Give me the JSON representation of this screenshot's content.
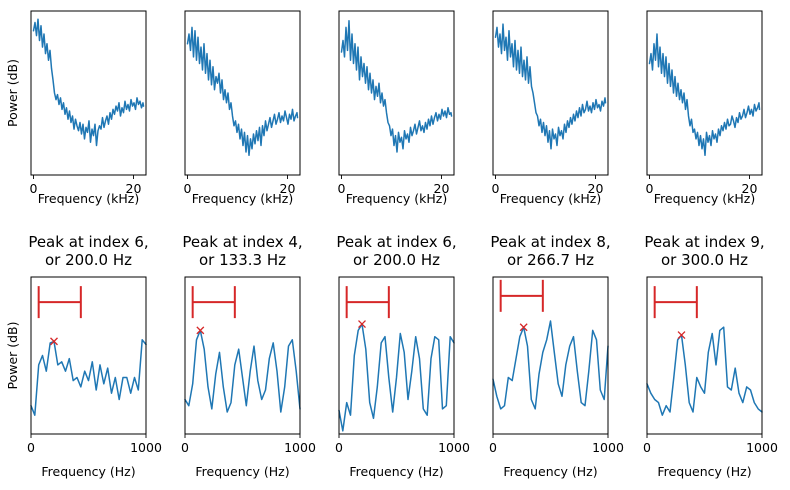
{
  "figure": {
    "top_row": {
      "ylabel": "Power (dB)",
      "xlabel": "Frequency (kHz)",
      "xticks": [
        0,
        20
      ]
    },
    "bottom_row": {
      "ylabel": "Power (dB)",
      "xlabel": "Frequency (Hz)",
      "xticks": [
        0,
        1000
      ]
    }
  },
  "chart_data": [
    {
      "type": "line",
      "row": "top",
      "panel": 1,
      "xlabel": "Frequency (kHz)",
      "ylabel": "Power (dB)",
      "xlim": [
        -0.5,
        22.5
      ],
      "ylim": [
        0,
        100
      ],
      "x": [
        0,
        0.3,
        0.6,
        0.9,
        1.2,
        1.5,
        1.8,
        2.1,
        2.4,
        2.7,
        3.0,
        3.3,
        3.6,
        3.9,
        4.2,
        4.5,
        4.8,
        5.1,
        5.4,
        5.7,
        6.0,
        6.3,
        6.6,
        6.9,
        7.2,
        7.5,
        7.8,
        8.1,
        8.4,
        8.7,
        9.0,
        9.3,
        9.6,
        9.9,
        10.2,
        10.5,
        10.8,
        11.1,
        11.4,
        11.7,
        12.0,
        12.3,
        12.6,
        12.9,
        13.2,
        13.5,
        13.8,
        14.1,
        14.4,
        14.7,
        15.0,
        15.3,
        15.6,
        15.9,
        16.2,
        16.5,
        16.8,
        17.1,
        17.4,
        17.7,
        18.0,
        18.3,
        18.6,
        18.9,
        19.2,
        19.5,
        19.8,
        20.1,
        20.4,
        20.7,
        21.0,
        21.3,
        21.6,
        21.9,
        22.0
      ],
      "y": [
        88,
        93,
        85,
        95,
        82,
        91,
        78,
        86,
        74,
        80,
        70,
        76,
        65,
        58,
        50,
        46,
        49,
        43,
        47,
        40,
        44,
        37,
        41,
        34,
        39,
        32,
        36,
        28,
        34,
        30,
        27,
        32,
        25,
        31,
        22,
        29,
        26,
        33,
        20,
        28,
        24,
        31,
        18,
        27,
        30,
        28,
        35,
        29,
        33,
        36,
        31,
        38,
        34,
        40,
        37,
        42,
        39,
        44,
        36,
        41,
        38,
        45,
        40,
        43,
        39,
        46,
        42,
        44,
        40,
        47,
        43,
        45,
        41,
        44,
        42
      ]
    },
    {
      "type": "line",
      "row": "top",
      "panel": 2,
      "xlabel": "Frequency (kHz)",
      "xlim": [
        -0.5,
        22.5
      ],
      "ylim": [
        0,
        100
      ],
      "x": [
        0,
        0.3,
        0.6,
        0.9,
        1.2,
        1.5,
        1.8,
        2.1,
        2.4,
        2.7,
        3.0,
        3.3,
        3.6,
        3.9,
        4.2,
        4.5,
        4.8,
        5.1,
        5.4,
        5.7,
        6.0,
        6.3,
        6.6,
        6.9,
        7.2,
        7.5,
        7.8,
        8.1,
        8.4,
        8.7,
        9.0,
        9.3,
        9.6,
        9.9,
        10.2,
        10.5,
        10.8,
        11.1,
        11.4,
        11.7,
        12.0,
        12.3,
        12.6,
        12.9,
        13.2,
        13.5,
        13.8,
        14.1,
        14.4,
        14.7,
        15.0,
        15.3,
        15.6,
        15.9,
        16.2,
        16.5,
        16.8,
        17.1,
        17.4,
        17.7,
        18.0,
        18.3,
        18.6,
        18.9,
        19.2,
        19.5,
        19.8,
        20.1,
        20.4,
        20.7,
        21.0,
        21.3,
        21.6,
        21.9,
        22.0
      ],
      "y": [
        80,
        86,
        76,
        90,
        72,
        88,
        70,
        84,
        68,
        78,
        64,
        80,
        62,
        74,
        58,
        70,
        55,
        66,
        52,
        60,
        56,
        62,
        50,
        58,
        46,
        52,
        44,
        50,
        40,
        44,
        36,
        30,
        33,
        26,
        31,
        22,
        28,
        18,
        26,
        14,
        24,
        12,
        22,
        16,
        25,
        19,
        27,
        21,
        29,
        18,
        30,
        24,
        33,
        27,
        31,
        35,
        29,
        33,
        37,
        31,
        34,
        38,
        32,
        36,
        33,
        39,
        35,
        31,
        37,
        34,
        40,
        33,
        36,
        38,
        35
      ]
    },
    {
      "type": "line",
      "row": "top",
      "panel": 3,
      "xlabel": "Frequency (kHz)",
      "xlim": [
        -0.5,
        22.5
      ],
      "ylim": [
        0,
        100
      ],
      "x": [
        0,
        0.3,
        0.6,
        0.9,
        1.2,
        1.5,
        1.8,
        2.1,
        2.4,
        2.7,
        3.0,
        3.3,
        3.6,
        3.9,
        4.2,
        4.5,
        4.8,
        5.1,
        5.4,
        5.7,
        6.0,
        6.3,
        6.6,
        6.9,
        7.2,
        7.5,
        7.8,
        8.1,
        8.4,
        8.7,
        9.0,
        9.3,
        9.6,
        9.9,
        10.2,
        10.5,
        10.8,
        11.1,
        11.4,
        11.7,
        12.0,
        12.3,
        12.6,
        12.9,
        13.2,
        13.5,
        13.8,
        14.1,
        14.4,
        14.7,
        15.0,
        15.3,
        15.6,
        15.9,
        16.2,
        16.5,
        16.8,
        17.1,
        17.4,
        17.7,
        18.0,
        18.3,
        18.6,
        18.9,
        19.2,
        19.5,
        19.8,
        20.1,
        20.4,
        20.7,
        21.0,
        21.3,
        21.6,
        21.9,
        22.0
      ],
      "y": [
        75,
        82,
        72,
        90,
        76,
        94,
        70,
        86,
        68,
        80,
        64,
        78,
        58,
        72,
        60,
        68,
        56,
        66,
        52,
        62,
        50,
        58,
        46,
        54,
        48,
        56,
        44,
        50,
        42,
        46,
        38,
        32,
        30,
        24,
        28,
        18,
        24,
        14,
        26,
        20,
        23,
        16,
        27,
        22,
        25,
        20,
        29,
        24,
        27,
        31,
        25,
        29,
        33,
        27,
        30,
        26,
        32,
        28,
        34,
        30,
        36,
        31,
        35,
        38,
        33,
        37,
        34,
        40,
        36,
        39,
        35,
        41,
        37,
        38,
        36
      ]
    },
    {
      "type": "line",
      "row": "top",
      "panel": 4,
      "xlabel": "Frequency (kHz)",
      "xlim": [
        -0.5,
        22.5
      ],
      "ylim": [
        0,
        100
      ],
      "x": [
        0,
        0.3,
        0.6,
        0.9,
        1.2,
        1.5,
        1.8,
        2.1,
        2.4,
        2.7,
        3.0,
        3.3,
        3.6,
        3.9,
        4.2,
        4.5,
        4.8,
        5.1,
        5.4,
        5.7,
        6.0,
        6.3,
        6.6,
        6.9,
        7.2,
        7.5,
        7.8,
        8.1,
        8.4,
        8.7,
        9.0,
        9.3,
        9.6,
        9.9,
        10.2,
        10.5,
        10.8,
        11.1,
        11.4,
        11.7,
        12.0,
        12.3,
        12.6,
        12.9,
        13.2,
        13.5,
        13.8,
        14.1,
        14.4,
        14.7,
        15.0,
        15.3,
        15.6,
        15.9,
        16.2,
        16.5,
        16.8,
        17.1,
        17.4,
        17.7,
        18.0,
        18.3,
        18.6,
        18.9,
        19.2,
        19.5,
        19.8,
        20.1,
        20.4,
        20.7,
        21.0,
        21.3,
        21.6,
        21.9,
        22.0
      ],
      "y": [
        84,
        90,
        78,
        86,
        74,
        92,
        76,
        84,
        70,
        88,
        72,
        80,
        66,
        82,
        64,
        76,
        62,
        78,
        60,
        70,
        58,
        72,
        56,
        66,
        54,
        50,
        44,
        38,
        36,
        30,
        34,
        26,
        32,
        24,
        30,
        20,
        27,
        16,
        28,
        22,
        25,
        18,
        29,
        24,
        27,
        22,
        31,
        26,
        33,
        29,
        35,
        31,
        37,
        33,
        39,
        35,
        41,
        36,
        43,
        38,
        40,
        45,
        39,
        42,
        38,
        44,
        40,
        46,
        41,
        43,
        39,
        45,
        42,
        47,
        44
      ]
    },
    {
      "type": "line",
      "row": "top",
      "panel": 5,
      "xlabel": "Frequency (kHz)",
      "xlim": [
        -0.5,
        22.5
      ],
      "ylim": [
        0,
        100
      ],
      "x": [
        0,
        0.3,
        0.6,
        0.9,
        1.2,
        1.5,
        1.8,
        2.1,
        2.4,
        2.7,
        3.0,
        3.3,
        3.6,
        3.9,
        4.2,
        4.5,
        4.8,
        5.1,
        5.4,
        5.7,
        6.0,
        6.3,
        6.6,
        6.9,
        7.2,
        7.5,
        7.8,
        8.1,
        8.4,
        8.7,
        9.0,
        9.3,
        9.6,
        9.9,
        10.2,
        10.5,
        10.8,
        11.1,
        11.4,
        11.7,
        12.0,
        12.3,
        12.6,
        12.9,
        13.2,
        13.5,
        13.8,
        14.1,
        14.4,
        14.7,
        15.0,
        15.3,
        15.6,
        15.9,
        16.2,
        16.5,
        16.8,
        17.1,
        17.4,
        17.7,
        18.0,
        18.3,
        18.6,
        18.9,
        19.2,
        19.5,
        19.8,
        20.1,
        20.4,
        20.7,
        21.0,
        21.3,
        21.6,
        21.9,
        22.0
      ],
      "y": [
        68,
        74,
        64,
        80,
        70,
        86,
        66,
        78,
        62,
        74,
        60,
        72,
        56,
        68,
        54,
        64,
        50,
        60,
        48,
        56,
        46,
        52,
        44,
        50,
        40,
        46,
        36,
        30,
        34,
        26,
        28,
        22,
        26,
        18,
        24,
        16,
        22,
        12,
        26,
        20,
        24,
        18,
        27,
        22,
        25,
        20,
        28,
        24,
        30,
        27,
        32,
        28,
        34,
        30,
        31,
        36,
        33,
        29,
        35,
        32,
        38,
        34,
        36,
        40,
        35,
        38,
        42,
        37,
        40,
        36,
        43,
        39,
        41,
        44,
        40
      ]
    },
    {
      "type": "line",
      "row": "bottom",
      "panel": 1,
      "title": "Peak at index 6,\nor 200.0 Hz",
      "xlabel": "Frequency (Hz)",
      "ylabel": "Power (dB)",
      "xlim": [
        0,
        1000
      ],
      "ylim": [
        0,
        100
      ],
      "peak": {
        "x": 200,
        "y": 59
      },
      "bracket": {
        "x_start": 66.7,
        "x_end": 433.3,
        "y": 84
      },
      "x": [
        0,
        33.3,
        66.7,
        100,
        133.3,
        166.7,
        200,
        233.3,
        266.7,
        300,
        333.3,
        366.7,
        400,
        433.3,
        466.7,
        500,
        533.3,
        566.7,
        600,
        633.3,
        666.7,
        700,
        733.3,
        766.7,
        800,
        833.3,
        866.7,
        900,
        933.3,
        966.7,
        1000
      ],
      "y": [
        18,
        12,
        44,
        50,
        40,
        58,
        59,
        44,
        46,
        40,
        48,
        34,
        36,
        30,
        40,
        34,
        46,
        28,
        44,
        32,
        42,
        26,
        36,
        22,
        36,
        36,
        26,
        36,
        28,
        60,
        57
      ]
    },
    {
      "type": "line",
      "row": "bottom",
      "panel": 2,
      "title": "Peak at index 4,\nor 133.3 Hz",
      "xlabel": "Frequency (Hz)",
      "xlim": [
        0,
        1000
      ],
      "ylim": [
        0,
        100
      ],
      "peak": {
        "x": 133.3,
        "y": 66
      },
      "bracket": {
        "x_start": 66.7,
        "x_end": 433.3,
        "y": 84
      },
      "x": [
        0,
        33.3,
        66.7,
        100,
        133.3,
        166.7,
        200,
        233.3,
        266.7,
        300,
        333.3,
        366.7,
        400,
        433.3,
        466.7,
        500,
        533.3,
        566.7,
        600,
        633.3,
        666.7,
        700,
        733.3,
        766.7,
        800,
        833.3,
        866.7,
        900,
        933.3,
        966.7,
        1000
      ],
      "y": [
        22,
        18,
        32,
        60,
        66,
        54,
        30,
        16,
        38,
        52,
        30,
        14,
        20,
        44,
        54,
        36,
        18,
        40,
        56,
        34,
        22,
        28,
        48,
        58,
        40,
        14,
        30,
        56,
        60,
        40,
        16
      ]
    },
    {
      "type": "line",
      "row": "bottom",
      "panel": 3,
      "title": "Peak at index 6,\nor 200.0 Hz",
      "xlabel": "Frequency (Hz)",
      "xlim": [
        0,
        1000
      ],
      "ylim": [
        0,
        100
      ],
      "peak": {
        "x": 200,
        "y": 70
      },
      "bracket": {
        "x_start": 66.7,
        "x_end": 433.3,
        "y": 84
      },
      "x": [
        0,
        33.3,
        66.7,
        100,
        133.3,
        166.7,
        200,
        233.3,
        266.7,
        300,
        333.3,
        366.7,
        400,
        433.3,
        466.7,
        500,
        533.3,
        566.7,
        600,
        633.3,
        666.7,
        700,
        733.3,
        766.7,
        800,
        833.3,
        866.7,
        900,
        933.3,
        966.7,
        1000
      ],
      "y": [
        15,
        2,
        20,
        12,
        50,
        66,
        70,
        54,
        20,
        10,
        30,
        58,
        62,
        36,
        14,
        36,
        64,
        52,
        22,
        40,
        62,
        48,
        16,
        12,
        48,
        62,
        60,
        16,
        18,
        62,
        58
      ]
    },
    {
      "type": "line",
      "row": "bottom",
      "panel": 4,
      "title": "Peak at index 8,\nor 266.7 Hz",
      "xlabel": "Frequency (Hz)",
      "xlim": [
        0,
        1000
      ],
      "ylim": [
        0,
        100
      ],
      "peak": {
        "x": 266.7,
        "y": 68
      },
      "bracket": {
        "x_start": 66.7,
        "x_end": 433.3,
        "y": 88
      },
      "x": [
        0,
        33.3,
        66.7,
        100,
        133.3,
        166.7,
        200,
        233.3,
        266.7,
        300,
        333.3,
        366.7,
        400,
        433.3,
        466.7,
        500,
        533.3,
        566.7,
        600,
        633.3,
        666.7,
        700,
        733.3,
        766.7,
        800,
        833.3,
        866.7,
        900,
        933.3,
        966.7,
        1000
      ],
      "y": [
        35,
        24,
        16,
        18,
        36,
        34,
        48,
        62,
        68,
        56,
        22,
        16,
        38,
        52,
        60,
        72,
        52,
        32,
        24,
        44,
        56,
        62,
        40,
        20,
        18,
        40,
        66,
        60,
        28,
        22,
        56
      ]
    },
    {
      "type": "line",
      "row": "bottom",
      "panel": 5,
      "title": "Peak at index 9,\nor 300.0 Hz",
      "xlabel": "Frequency (Hz)",
      "xlim": [
        0,
        1000
      ],
      "ylim": [
        0,
        100
      ],
      "peak": {
        "x": 300,
        "y": 63
      },
      "bracket": {
        "x_start": 66.7,
        "x_end": 433.3,
        "y": 84
      },
      "x": [
        0,
        33.3,
        66.7,
        100,
        133.3,
        166.7,
        200,
        233.3,
        266.7,
        300,
        333.3,
        366.7,
        400,
        433.3,
        466.7,
        500,
        533.3,
        566.7,
        600,
        633.3,
        666.7,
        700,
        733.3,
        766.7,
        800,
        833.3,
        866.7,
        900,
        933.3,
        966.7,
        1000
      ],
      "y": [
        32,
        26,
        22,
        20,
        12,
        18,
        14,
        36,
        60,
        63,
        44,
        20,
        14,
        36,
        30,
        26,
        52,
        64,
        44,
        66,
        68,
        30,
        28,
        42,
        26,
        20,
        30,
        28,
        20,
        16,
        14
      ]
    }
  ]
}
